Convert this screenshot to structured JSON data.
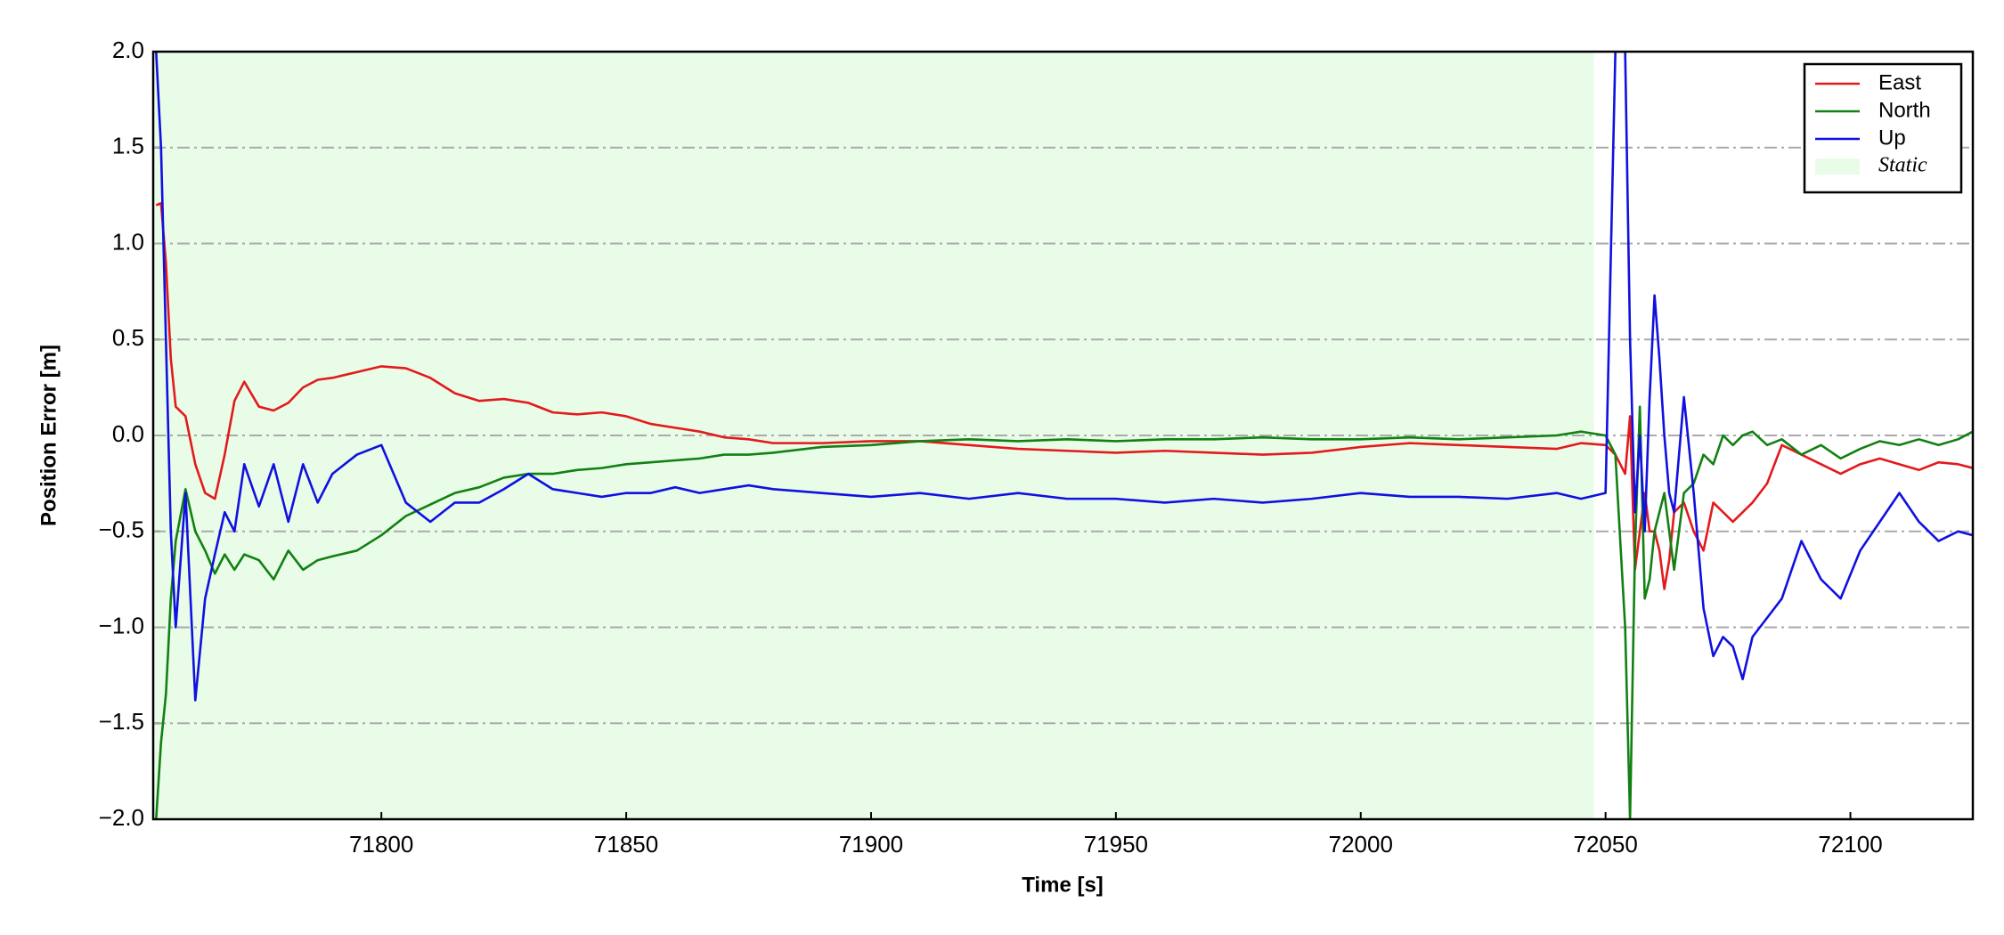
{
  "chart_data": {
    "type": "line",
    "xlabel": "Time [s]",
    "ylabel": "Position Error [m]",
    "x": [
      71754,
      71755,
      71756,
      71757,
      71758,
      71760,
      71762,
      71764,
      71766,
      71768,
      71770,
      71772,
      71775,
      71778,
      71781,
      71784,
      71787,
      71790,
      71795,
      71800,
      71805,
      71810,
      71815,
      71820,
      71825,
      71830,
      71835,
      71840,
      71845,
      71850,
      71855,
      71860,
      71865,
      71870,
      71875,
      71880,
      71890,
      71900,
      71910,
      71920,
      71930,
      71940,
      71950,
      71960,
      71970,
      71980,
      71990,
      72000,
      72010,
      72020,
      72030,
      72040,
      72045,
      72050,
      72052,
      72054,
      72055,
      72056,
      72057,
      72058,
      72059,
      72060,
      72061,
      72062,
      72063,
      72064,
      72066,
      72068,
      72070,
      72072,
      72074,
      72076,
      72078,
      72080,
      72083,
      72086,
      72090,
      72094,
      72098,
      72102,
      72106,
      72110,
      72114,
      72118,
      72122,
      72125
    ],
    "series": [
      {
        "name": "East",
        "color": "#e31a1c",
        "values": [
          1.2,
          1.21,
          0.9,
          0.4,
          0.15,
          0.1,
          -0.15,
          -0.3,
          -0.33,
          -0.1,
          0.18,
          0.28,
          0.15,
          0.13,
          0.17,
          0.25,
          0.29,
          0.3,
          0.33,
          0.36,
          0.35,
          0.3,
          0.22,
          0.18,
          0.19,
          0.17,
          0.12,
          0.11,
          0.12,
          0.1,
          0.06,
          0.04,
          0.02,
          -0.01,
          -0.02,
          -0.04,
          -0.04,
          -0.03,
          -0.03,
          -0.05,
          -0.07,
          -0.08,
          -0.09,
          -0.08,
          -0.09,
          -0.1,
          -0.09,
          -0.06,
          -0.04,
          -0.05,
          -0.06,
          -0.07,
          -0.04,
          -0.05,
          -0.1,
          -0.2,
          0.1,
          -0.7,
          -0.5,
          -0.3,
          -0.5,
          -0.5,
          -0.6,
          -0.8,
          -0.65,
          -0.4,
          -0.35,
          -0.5,
          -0.6,
          -0.35,
          -0.4,
          -0.45,
          -0.4,
          -0.35,
          -0.25,
          -0.05,
          -0.1,
          -0.15,
          -0.2,
          -0.15,
          -0.12,
          -0.15,
          -0.18,
          -0.14,
          -0.15,
          -0.17
        ]
      },
      {
        "name": "North",
        "color": "#128012",
        "values": [
          -2.0,
          -1.6,
          -1.35,
          -0.85,
          -0.55,
          -0.28,
          -0.5,
          -0.6,
          -0.72,
          -0.62,
          -0.7,
          -0.62,
          -0.65,
          -0.75,
          -0.6,
          -0.7,
          -0.65,
          -0.63,
          -0.6,
          -0.52,
          -0.42,
          -0.36,
          -0.3,
          -0.27,
          -0.22,
          -0.2,
          -0.2,
          -0.18,
          -0.17,
          -0.15,
          -0.14,
          -0.13,
          -0.12,
          -0.1,
          -0.1,
          -0.09,
          -0.06,
          -0.05,
          -0.03,
          -0.02,
          -0.03,
          -0.02,
          -0.03,
          -0.02,
          -0.02,
          -0.01,
          -0.02,
          -0.02,
          -0.01,
          -0.02,
          -0.01,
          0.0,
          0.02,
          0.0,
          -0.1,
          -1.0,
          -2.0,
          -0.6,
          0.15,
          -0.85,
          -0.75,
          -0.5,
          -0.4,
          -0.3,
          -0.5,
          -0.7,
          -0.3,
          -0.25,
          -0.1,
          -0.15,
          0.0,
          -0.05,
          0.0,
          0.02,
          -0.05,
          -0.02,
          -0.1,
          -0.05,
          -0.12,
          -0.07,
          -0.03,
          -0.05,
          -0.02,
          -0.05,
          -0.02,
          0.02
        ]
      },
      {
        "name": "Up",
        "color": "#1010e0",
        "values": [
          2.0,
          1.5,
          0.5,
          -0.5,
          -1.0,
          -0.3,
          -1.38,
          -0.85,
          -0.62,
          -0.4,
          -0.5,
          -0.15,
          -0.37,
          -0.15,
          -0.45,
          -0.15,
          -0.35,
          -0.2,
          -0.1,
          -0.05,
          -0.35,
          -0.45,
          -0.35,
          -0.35,
          -0.28,
          -0.2,
          -0.28,
          -0.3,
          -0.32,
          -0.3,
          -0.3,
          -0.27,
          -0.3,
          -0.28,
          -0.26,
          -0.28,
          -0.3,
          -0.32,
          -0.3,
          -0.33,
          -0.3,
          -0.33,
          -0.33,
          -0.35,
          -0.33,
          -0.35,
          -0.33,
          -0.3,
          -0.32,
          -0.32,
          -0.33,
          -0.3,
          -0.33,
          -0.3,
          2.0,
          2.0,
          0.5,
          -0.4,
          0.0,
          -0.5,
          0.2,
          0.73,
          0.4,
          0.0,
          -0.3,
          -0.4,
          0.2,
          -0.3,
          -0.9,
          -1.15,
          -1.05,
          -1.1,
          -1.27,
          -1.05,
          -0.95,
          -0.85,
          -0.55,
          -0.75,
          -0.85,
          -0.6,
          -0.45,
          -0.3,
          -0.45,
          -0.55,
          -0.5,
          -0.52
        ]
      }
    ],
    "shaded_region": {
      "name": "Static",
      "color": "#e8fce8",
      "xmin": 71753.4,
      "xmax": 72047.6
    },
    "xlim": [
      71753.4,
      72125
    ],
    "xticks": [
      71800,
      71850,
      71900,
      71950,
      72000,
      72050,
      72100
    ],
    "ylim": [
      -2.0,
      2.0
    ],
    "yticks": [
      {
        "value": -2.0,
        "label": "−2.0"
      },
      {
        "value": -1.5,
        "label": "−1.5"
      },
      {
        "value": -1.0,
        "label": "−1.0"
      },
      {
        "value": -0.5,
        "label": "−0.5"
      },
      {
        "value": 0.0,
        "label": "0.0"
      },
      {
        "value": 0.5,
        "label": "0.5"
      },
      {
        "value": 1.0,
        "label": "1.0"
      },
      {
        "value": 1.5,
        "label": "1.5"
      },
      {
        "value": 2.0,
        "label": "2.0"
      }
    ],
    "grid": true,
    "legend": "upper right"
  }
}
